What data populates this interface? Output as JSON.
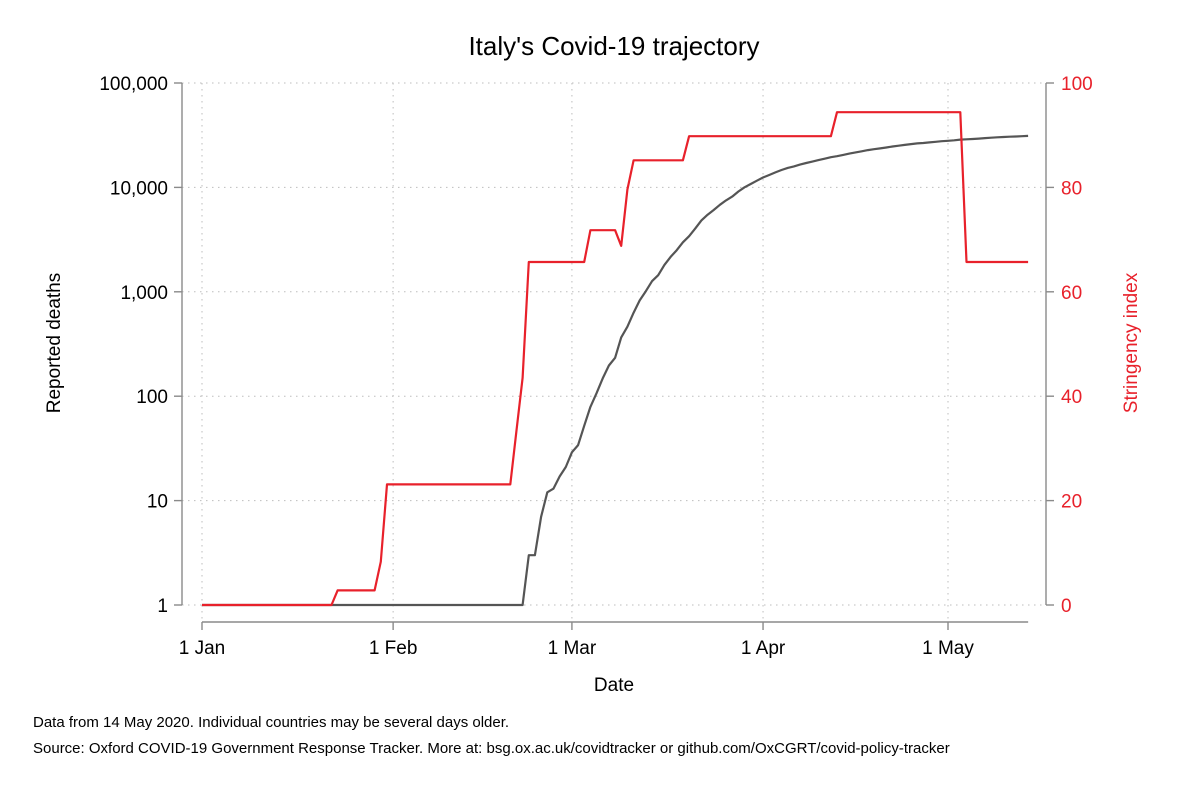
{
  "chart_data": {
    "type": "line",
    "title": "Italy's Covid-19 trajectory",
    "xlabel": "Date",
    "ylabel_left": "Reported deaths",
    "ylabel_right": "Stringency index",
    "x_domain": [
      "2020-01-01",
      "2020-05-15"
    ],
    "x_ticks": [
      {
        "date": "2020-01-01",
        "label": "1 Jan"
      },
      {
        "date": "2020-02-01",
        "label": "1 Feb"
      },
      {
        "date": "2020-03-01",
        "label": "1 Mar"
      },
      {
        "date": "2020-04-01",
        "label": "1 Apr"
      },
      {
        "date": "2020-05-01",
        "label": "1 May"
      }
    ],
    "y_left": {
      "scale": "log",
      "range": [
        1,
        100000
      ],
      "ticks": [
        {
          "value": 1,
          "label": "1"
        },
        {
          "value": 10,
          "label": "10"
        },
        {
          "value": 100,
          "label": "100"
        },
        {
          "value": 1000,
          "label": "1,000"
        },
        {
          "value": 10000,
          "label": "10,000"
        },
        {
          "value": 100000,
          "label": "100,000"
        }
      ]
    },
    "y_right": {
      "scale": "linear",
      "range": [
        0,
        100
      ],
      "ticks": [
        {
          "value": 0,
          "label": "0"
        },
        {
          "value": 20,
          "label": "20"
        },
        {
          "value": 40,
          "label": "40"
        },
        {
          "value": 60,
          "label": "60"
        },
        {
          "value": 80,
          "label": "80"
        },
        {
          "value": 100,
          "label": "100"
        }
      ]
    },
    "grid": true,
    "series": [
      {
        "axis": "left",
        "color": "#555555",
        "points": [
          [
            "2020-01-01",
            1
          ],
          [
            "2020-02-22",
            1
          ],
          [
            "2020-02-23",
            3
          ],
          [
            "2020-02-24",
            3
          ],
          [
            "2020-02-25",
            7
          ],
          [
            "2020-02-26",
            12
          ],
          [
            "2020-02-27",
            13
          ],
          [
            "2020-02-28",
            17
          ],
          [
            "2020-02-29",
            21
          ],
          [
            "2020-03-01",
            29
          ],
          [
            "2020-03-02",
            34
          ],
          [
            "2020-03-03",
            52
          ],
          [
            "2020-03-04",
            79
          ],
          [
            "2020-03-05",
            107
          ],
          [
            "2020-03-06",
            148
          ],
          [
            "2020-03-07",
            197
          ],
          [
            "2020-03-08",
            233
          ],
          [
            "2020-03-09",
            366
          ],
          [
            "2020-03-10",
            463
          ],
          [
            "2020-03-11",
            631
          ],
          [
            "2020-03-12",
            827
          ],
          [
            "2020-03-13",
            1016
          ],
          [
            "2020-03-14",
            1266
          ],
          [
            "2020-03-15",
            1441
          ],
          [
            "2020-03-16",
            1809
          ],
          [
            "2020-03-17",
            2158
          ],
          [
            "2020-03-18",
            2503
          ],
          [
            "2020-03-19",
            2978
          ],
          [
            "2020-03-20",
            3405
          ],
          [
            "2020-03-21",
            4032
          ],
          [
            "2020-03-22",
            4825
          ],
          [
            "2020-03-23",
            5476
          ],
          [
            "2020-03-24",
            6077
          ],
          [
            "2020-03-25",
            6820
          ],
          [
            "2020-03-26",
            7503
          ],
          [
            "2020-03-27",
            8165
          ],
          [
            "2020-03-28",
            9134
          ],
          [
            "2020-03-29",
            10023
          ],
          [
            "2020-03-30",
            10779
          ],
          [
            "2020-03-31",
            11591
          ],
          [
            "2020-04-01",
            12428
          ],
          [
            "2020-04-02",
            13155
          ],
          [
            "2020-04-03",
            13915
          ],
          [
            "2020-04-04",
            14681
          ],
          [
            "2020-04-05",
            15362
          ],
          [
            "2020-04-06",
            15887
          ],
          [
            "2020-04-07",
            16523
          ],
          [
            "2020-04-08",
            17127
          ],
          [
            "2020-04-09",
            17669
          ],
          [
            "2020-04-10",
            18279
          ],
          [
            "2020-04-11",
            18849
          ],
          [
            "2020-04-12",
            19468
          ],
          [
            "2020-04-13",
            19899
          ],
          [
            "2020-04-14",
            20465
          ],
          [
            "2020-04-15",
            21067
          ],
          [
            "2020-04-16",
            21645
          ],
          [
            "2020-04-17",
            22170
          ],
          [
            "2020-04-18",
            22745
          ],
          [
            "2020-04-19",
            23227
          ],
          [
            "2020-04-20",
            23660
          ],
          [
            "2020-04-21",
            24114
          ],
          [
            "2020-04-22",
            24648
          ],
          [
            "2020-04-23",
            25085
          ],
          [
            "2020-04-24",
            25549
          ],
          [
            "2020-04-25",
            25969
          ],
          [
            "2020-04-26",
            26384
          ],
          [
            "2020-04-27",
            26644
          ],
          [
            "2020-04-28",
            26977
          ],
          [
            "2020-04-29",
            27359
          ],
          [
            "2020-04-30",
            27682
          ],
          [
            "2020-05-01",
            27967
          ],
          [
            "2020-05-02",
            28236
          ],
          [
            "2020-05-03",
            28710
          ],
          [
            "2020-05-04",
            28884
          ],
          [
            "2020-05-05",
            29079
          ],
          [
            "2020-05-06",
            29315
          ],
          [
            "2020-05-07",
            29684
          ],
          [
            "2020-05-08",
            29958
          ],
          [
            "2020-05-09",
            30201
          ],
          [
            "2020-05-10",
            30395
          ],
          [
            "2020-05-11",
            30560
          ],
          [
            "2020-05-12",
            30739
          ],
          [
            "2020-05-13",
            30911
          ],
          [
            "2020-05-14",
            31106
          ]
        ]
      },
      {
        "axis": "right",
        "color": "#e8212b",
        "points": [
          [
            "2020-01-01",
            0
          ],
          [
            "2020-01-22",
            0
          ],
          [
            "2020-01-23",
            2.8
          ],
          [
            "2020-01-29",
            2.8
          ],
          [
            "2020-01-30",
            8.3
          ],
          [
            "2020-01-31",
            23.1
          ],
          [
            "2020-02-20",
            23.1
          ],
          [
            "2020-02-21",
            33.3
          ],
          [
            "2020-02-22",
            43.5
          ],
          [
            "2020-02-23",
            65.7
          ],
          [
            "2020-03-03",
            65.7
          ],
          [
            "2020-03-04",
            71.8
          ],
          [
            "2020-03-08",
            71.8
          ],
          [
            "2020-03-09",
            68.8
          ],
          [
            "2020-03-10",
            79.6
          ],
          [
            "2020-03-11",
            85.2
          ],
          [
            "2020-03-19",
            85.2
          ],
          [
            "2020-03-20",
            89.8
          ],
          [
            "2020-04-12",
            89.8
          ],
          [
            "2020-04-13",
            94.4
          ],
          [
            "2020-05-03",
            94.4
          ],
          [
            "2020-05-04",
            65.7
          ],
          [
            "2020-05-14",
            65.7
          ]
        ]
      }
    ],
    "notes": [
      "Data from 14 May 2020. Individual countries may be several days older.",
      "Source: Oxford COVID-19 Government Response Tracker. More at: bsg.ox.ac.uk/covidtracker or github.com/OxCGRT/covid-policy-tracker"
    ]
  }
}
